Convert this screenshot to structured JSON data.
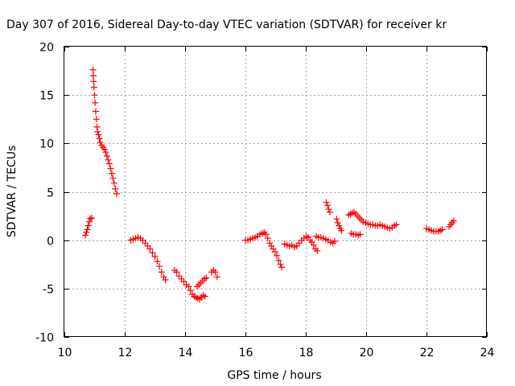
{
  "chart_data": {
    "type": "scatter",
    "title": "Day 307 of 2016, Sidereal Day-to-day VTEC variation (SDTVAR) for receiver kr",
    "xlabel": "GPS time / hours",
    "ylabel": "SDTVAR / TECUs",
    "xlim": [
      10,
      24
    ],
    "ylim": [
      -10,
      20
    ],
    "xticks": [
      10,
      12,
      14,
      16,
      18,
      20,
      22,
      24
    ],
    "yticks": [
      -10,
      -5,
      0,
      5,
      10,
      15,
      20
    ],
    "xtick_labels": [
      "10",
      "12",
      "14",
      "16",
      "18",
      "20",
      "22",
      "24"
    ],
    "ytick_labels": [
      "-10",
      "-5",
      "0",
      "5",
      "10",
      "15",
      "20"
    ],
    "grid": true,
    "marker": "plus",
    "marker_color": "#ff0000",
    "series": [
      {
        "points": [
          [
            10.7,
            0.5
          ],
          [
            10.73,
            0.8
          ],
          [
            10.76,
            1.1
          ],
          [
            10.79,
            1.5
          ],
          [
            10.82,
            1.9
          ],
          [
            10.86,
            2.2
          ],
          [
            10.9,
            2.3
          ]
        ]
      },
      {
        "points": [
          [
            10.95,
            17.6
          ],
          [
            10.96,
            17.0
          ],
          [
            10.97,
            16.4
          ],
          [
            10.98,
            15.8
          ],
          [
            11.0,
            15.0
          ],
          [
            11.02,
            14.2
          ],
          [
            11.04,
            13.3
          ],
          [
            11.06,
            12.5
          ],
          [
            11.08,
            11.7
          ],
          [
            11.1,
            11.2
          ],
          [
            11.13,
            10.9
          ],
          [
            11.16,
            10.5
          ],
          [
            11.19,
            10.1
          ],
          [
            11.23,
            9.8
          ],
          [
            11.28,
            9.6
          ],
          [
            11.33,
            9.4
          ],
          [
            11.37,
            9.1
          ],
          [
            11.41,
            8.7
          ],
          [
            11.45,
            8.3
          ],
          [
            11.49,
            7.9
          ],
          [
            11.53,
            7.4
          ],
          [
            11.57,
            6.9
          ],
          [
            11.61,
            6.4
          ],
          [
            11.65,
            5.9
          ],
          [
            11.69,
            5.3
          ],
          [
            11.73,
            4.8
          ]
        ]
      },
      {
        "points": [
          [
            12.2,
            0.0
          ],
          [
            12.28,
            0.1
          ],
          [
            12.36,
            0.2
          ],
          [
            12.44,
            0.3
          ],
          [
            12.52,
            0.2
          ],
          [
            12.6,
            0.0
          ],
          [
            12.68,
            -0.3
          ],
          [
            12.76,
            -0.6
          ],
          [
            12.84,
            -0.9
          ],
          [
            12.92,
            -1.3
          ],
          [
            13.0,
            -1.7
          ],
          [
            13.08,
            -2.2
          ],
          [
            13.15,
            -2.7
          ],
          [
            13.22,
            -3.3
          ],
          [
            13.29,
            -3.8
          ],
          [
            13.35,
            -4.1
          ]
        ]
      },
      {
        "points": [
          [
            13.65,
            -3.1
          ],
          [
            13.72,
            -3.3
          ],
          [
            13.8,
            -3.7
          ],
          [
            13.88,
            -4.0
          ],
          [
            13.96,
            -4.3
          ],
          [
            14.04,
            -4.6
          ],
          [
            14.12,
            -4.8
          ],
          [
            14.18,
            -5.2
          ],
          [
            14.24,
            -5.6
          ],
          [
            14.3,
            -5.8
          ],
          [
            14.36,
            -5.9
          ],
          [
            14.42,
            -6.0
          ],
          [
            14.48,
            -6.1
          ],
          [
            14.54,
            -5.9
          ],
          [
            14.6,
            -5.7
          ],
          [
            14.66,
            -5.8
          ]
        ]
      },
      {
        "points": [
          [
            14.4,
            -4.8
          ],
          [
            14.46,
            -4.6
          ],
          [
            14.52,
            -4.4
          ],
          [
            14.58,
            -4.2
          ],
          [
            14.64,
            -4.0
          ],
          [
            14.7,
            -3.9
          ]
        ]
      },
      {
        "points": [
          [
            14.88,
            -3.3
          ],
          [
            14.94,
            -3.1
          ],
          [
            15.0,
            -3.3
          ],
          [
            15.06,
            -3.8
          ]
        ]
      },
      {
        "points": [
          [
            16.0,
            0.0
          ],
          [
            16.08,
            0.0
          ],
          [
            16.16,
            0.1
          ],
          [
            16.24,
            0.2
          ],
          [
            16.32,
            0.3
          ],
          [
            16.4,
            0.4
          ],
          [
            16.48,
            0.6
          ],
          [
            16.56,
            0.7
          ],
          [
            16.62,
            0.8
          ],
          [
            16.68,
            0.6
          ],
          [
            16.74,
            0.2
          ],
          [
            16.8,
            -0.3
          ],
          [
            16.86,
            -0.6
          ],
          [
            16.92,
            -0.9
          ],
          [
            16.98,
            -1.2
          ],
          [
            17.04,
            -1.6
          ],
          [
            17.1,
            -2.1
          ],
          [
            17.16,
            -2.5
          ],
          [
            17.2,
            -2.8
          ]
        ]
      },
      {
        "points": [
          [
            17.3,
            -0.4
          ],
          [
            17.38,
            -0.5
          ],
          [
            17.46,
            -0.6
          ],
          [
            17.54,
            -0.5
          ],
          [
            17.62,
            -0.7
          ],
          [
            17.7,
            -0.6
          ],
          [
            17.78,
            -0.3
          ],
          [
            17.86,
            0.0
          ],
          [
            17.94,
            0.2
          ],
          [
            18.02,
            0.4
          ],
          [
            18.08,
            0.3
          ],
          [
            18.14,
            0.0
          ],
          [
            18.2,
            -0.2
          ],
          [
            18.26,
            -0.5
          ],
          [
            18.32,
            -0.9
          ],
          [
            18.38,
            -1.1
          ]
        ]
      },
      {
        "points": [
          [
            18.35,
            0.4
          ],
          [
            18.42,
            0.3
          ],
          [
            18.5,
            0.3
          ],
          [
            18.58,
            0.2
          ],
          [
            18.66,
            0.1
          ],
          [
            18.74,
            0.0
          ],
          [
            18.82,
            -0.2
          ],
          [
            18.9,
            -0.3
          ],
          [
            18.96,
            -0.1
          ]
        ]
      },
      {
        "points": [
          [
            18.68,
            3.9
          ],
          [
            18.72,
            3.6
          ],
          [
            18.76,
            3.2
          ],
          [
            18.8,
            2.9
          ]
        ]
      },
      {
        "points": [
          [
            19.02,
            2.2
          ],
          [
            19.06,
            1.8
          ],
          [
            19.1,
            1.5
          ],
          [
            19.14,
            1.2
          ],
          [
            19.18,
            1.0
          ]
        ]
      },
      {
        "points": [
          [
            19.42,
            2.6
          ],
          [
            19.48,
            2.7
          ],
          [
            19.54,
            2.8
          ],
          [
            19.6,
            2.9
          ],
          [
            19.66,
            2.7
          ],
          [
            19.72,
            2.5
          ],
          [
            19.78,
            2.3
          ],
          [
            19.84,
            2.1
          ],
          [
            19.9,
            1.9
          ],
          [
            19.98,
            1.8
          ],
          [
            20.06,
            1.7
          ],
          [
            20.14,
            1.6
          ],
          [
            20.22,
            1.6
          ],
          [
            20.3,
            1.5
          ],
          [
            20.38,
            1.5
          ],
          [
            20.46,
            1.6
          ],
          [
            20.54,
            1.5
          ],
          [
            20.62,
            1.4
          ],
          [
            20.7,
            1.3
          ],
          [
            20.78,
            1.2
          ],
          [
            20.86,
            1.3
          ],
          [
            20.94,
            1.5
          ],
          [
            21.0,
            1.6
          ]
        ]
      },
      {
        "points": [
          [
            19.5,
            0.7
          ],
          [
            19.58,
            0.6
          ],
          [
            19.66,
            0.6
          ],
          [
            19.74,
            0.5
          ],
          [
            19.8,
            0.6
          ]
        ]
      },
      {
        "points": [
          [
            22.0,
            1.2
          ],
          [
            22.08,
            1.1
          ],
          [
            22.16,
            1.0
          ],
          [
            22.24,
            0.9
          ],
          [
            22.32,
            0.9
          ],
          [
            22.4,
            0.9
          ],
          [
            22.46,
            1.0
          ],
          [
            22.52,
            1.1
          ]
        ]
      },
      {
        "points": [
          [
            22.75,
            1.4
          ],
          [
            22.8,
            1.6
          ],
          [
            22.85,
            1.8
          ],
          [
            22.9,
            2.0
          ]
        ]
      }
    ]
  }
}
